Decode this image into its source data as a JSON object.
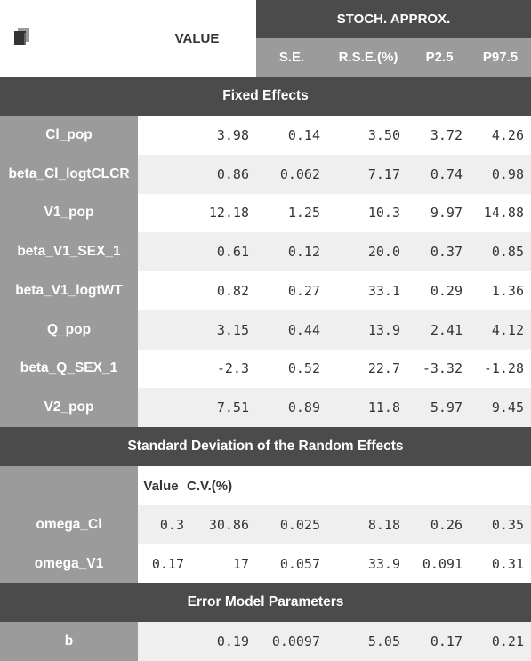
{
  "header": {
    "value_label": "VALUE",
    "group_label": "STOCH. APPROX.",
    "columns": [
      "S.E.",
      "R.S.E.(%)",
      "P2.5",
      "P97.5"
    ]
  },
  "sections": {
    "fixed": "Fixed Effects",
    "random": "Standard Deviation of the Random Effects",
    "error": "Error Model Parameters"
  },
  "random_subheader": {
    "value": "Value",
    "cv": "C.V.(%)"
  },
  "fixed_rows": [
    {
      "name": "Cl_pop",
      "value": "3.98",
      "se": "0.14",
      "rse": "3.50",
      "p25": "3.72",
      "p975": "4.26"
    },
    {
      "name": "beta_Cl_logtCLCR",
      "value": "0.86",
      "se": "0.062",
      "rse": "7.17",
      "p25": "0.74",
      "p975": "0.98"
    },
    {
      "name": "V1_pop",
      "value": "12.18",
      "se": "1.25",
      "rse": "10.3",
      "p25": "9.97",
      "p975": "14.88"
    },
    {
      "name": "beta_V1_SEX_1",
      "value": "0.61",
      "se": "0.12",
      "rse": "20.0",
      "p25": "0.37",
      "p975": "0.85"
    },
    {
      "name": "beta_V1_logtWT",
      "value": "0.82",
      "se": "0.27",
      "rse": "33.1",
      "p25": "0.29",
      "p975": "1.36"
    },
    {
      "name": "Q_pop",
      "value": "3.15",
      "se": "0.44",
      "rse": "13.9",
      "p25": "2.41",
      "p975": "4.12"
    },
    {
      "name": "beta_Q_SEX_1",
      "value": "-2.3",
      "se": "0.52",
      "rse": "22.7",
      "p25": "-3.32",
      "p975": "-1.28"
    },
    {
      "name": "V2_pop",
      "value": "7.51",
      "se": "0.89",
      "rse": "11.8",
      "p25": "5.97",
      "p975": "9.45"
    }
  ],
  "random_rows": [
    {
      "name": "omega_Cl",
      "value": "0.3",
      "cv": "30.86",
      "se": "0.025",
      "rse": "8.18",
      "p25": "0.26",
      "p975": "0.35"
    },
    {
      "name": "omega_V1",
      "value": "0.17",
      "cv": "17",
      "se": "0.057",
      "rse": "33.9",
      "p25": "0.091",
      "p975": "0.31"
    }
  ],
  "error_rows": [
    {
      "name": "b",
      "value": "0.19",
      "se": "0.0097",
      "rse": "5.05",
      "p25": "0.17",
      "p975": "0.21"
    }
  ]
}
